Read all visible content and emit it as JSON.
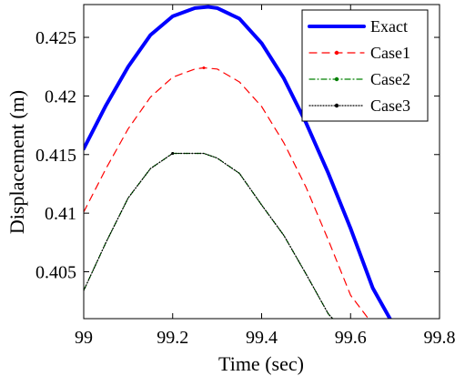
{
  "chart_data": {
    "type": "line",
    "xlabel": "Time (sec)",
    "ylabel": "Displacement (m)",
    "xlim": [
      99.0,
      99.8
    ],
    "ylim": [
      0.401,
      0.4278
    ],
    "xticks": [
      99.0,
      99.2,
      99.4,
      99.6,
      99.8
    ],
    "xtick_labels": [
      "99",
      "99.2",
      "99.4",
      "99.6",
      "99.8"
    ],
    "yticks": [
      0.405,
      0.41,
      0.415,
      0.42,
      0.425
    ],
    "ytick_labels": [
      "0.405",
      "0.41",
      "0.415",
      "0.42",
      "0.425"
    ],
    "grid": false,
    "legend_position": "top-right",
    "series": [
      {
        "name": "Exact",
        "color": "#0000ff",
        "style": "solid",
        "x": [
          99.0,
          99.05,
          99.1,
          99.15,
          99.2,
          99.25,
          99.28,
          99.3,
          99.35,
          99.4,
          99.45,
          99.5,
          99.55,
          99.6,
          99.65,
          99.69
        ],
        "y": [
          0.4155,
          0.4192,
          0.4225,
          0.4252,
          0.4268,
          0.4275,
          0.4276,
          0.4275,
          0.4266,
          0.4245,
          0.4215,
          0.4177,
          0.4134,
          0.4087,
          0.4036,
          0.4009
        ]
      },
      {
        "name": "Case1",
        "color": "#ff0000",
        "style": "dashed",
        "x": [
          99.0,
          99.05,
          99.1,
          99.15,
          99.2,
          99.25,
          99.27,
          99.3,
          99.35,
          99.4,
          99.45,
          99.5,
          99.55,
          99.6,
          99.64
        ],
        "y": [
          0.4101,
          0.4138,
          0.4172,
          0.4199,
          0.4216,
          0.4223,
          0.4224,
          0.4223,
          0.4212,
          0.4191,
          0.416,
          0.4122,
          0.4077,
          0.403,
          0.401
        ]
      },
      {
        "name": "Case2",
        "color": "#008000",
        "style": "dashdot",
        "x": [
          99.0,
          99.05,
          99.1,
          99.15,
          99.2,
          99.25,
          99.27,
          99.3,
          99.35,
          99.4,
          99.45,
          99.5,
          99.55,
          99.56
        ],
        "y": [
          0.4034,
          0.4075,
          0.4113,
          0.4138,
          0.4151,
          0.4151,
          0.4151,
          0.4147,
          0.4134,
          0.4107,
          0.4081,
          0.4048,
          0.4014,
          0.401
        ]
      },
      {
        "name": "Case3",
        "color": "#000000",
        "style": "dotted",
        "x": [
          99.0,
          99.05,
          99.1,
          99.15,
          99.2,
          99.25,
          99.27,
          99.3,
          99.35,
          99.4,
          99.45,
          99.5,
          99.55,
          99.56
        ],
        "y": [
          0.4034,
          0.4075,
          0.4113,
          0.4138,
          0.4151,
          0.4151,
          0.4151,
          0.4147,
          0.4134,
          0.4107,
          0.4081,
          0.4048,
          0.4014,
          0.401
        ]
      }
    ]
  }
}
